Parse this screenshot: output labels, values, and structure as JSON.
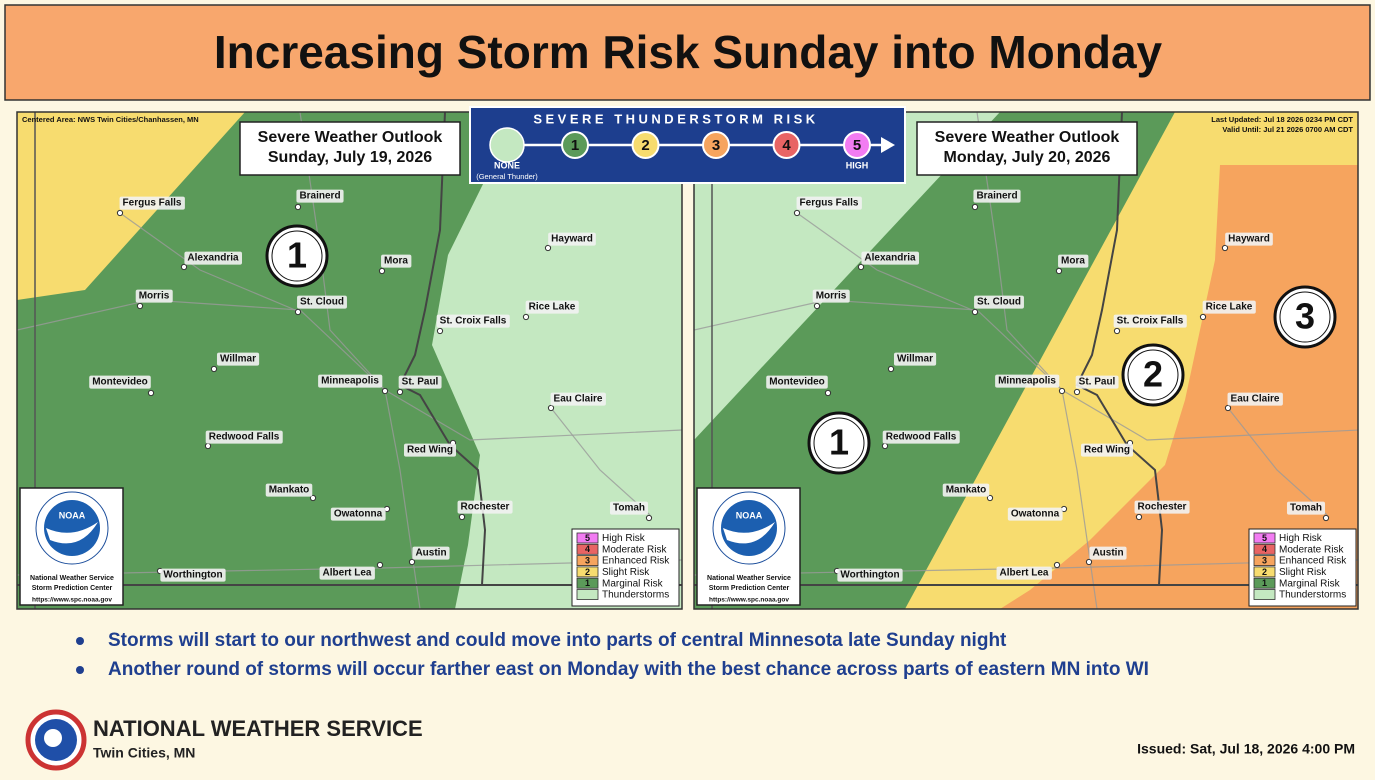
{
  "header": {
    "title": "Increasing Storm Risk Sunday into Monday"
  },
  "risk_scale": {
    "title": "SEVERE THUNDERSTORM RISK",
    "none_label": "NONE",
    "none_note": "(General Thunder)",
    "levels": [
      1,
      2,
      3,
      4,
      5
    ],
    "high_label": "HIGH"
  },
  "maps": [
    {
      "corner_lines": [
        "Centered Area: NWS Twin Cities/Chanhassen, MN"
      ],
      "heading": "Severe Weather Outlook",
      "date": "Sunday, July 19, 2026",
      "risk_circles": [
        1
      ],
      "cities": [
        "Fergus Falls",
        "Brainerd",
        "Alexandria",
        "Mora",
        "Morris",
        "St. Cloud",
        "Willmar",
        "Montevideo",
        "Minneapolis",
        "St. Paul",
        "Redwood Falls",
        "Mankato",
        "Owatonna",
        "Albert Lea",
        "Worthington",
        "Austin",
        "Rochester",
        "Red Wing",
        "Eau Claire",
        "Hayward",
        "Rice Lake",
        "St. Croix Falls",
        "Tomah"
      ],
      "noaa": {
        "logo": "NOAA",
        "lines": [
          "National Weather Service",
          "Storm Prediction Center",
          "https://www.spc.noaa.gov"
        ]
      },
      "key": [
        {
          "num": 5,
          "label": "High Risk"
        },
        {
          "num": 4,
          "label": "Moderate Risk"
        },
        {
          "num": 3,
          "label": "Enhanced Risk"
        },
        {
          "num": 2,
          "label": "Slight Risk"
        },
        {
          "num": 1,
          "label": "Marginal Risk"
        },
        {
          "label": "Thunderstorms"
        }
      ]
    },
    {
      "corner_lines": [
        "Last Updated: Jul 18 2026 0234 PM CDT",
        "Valid Until: Jul 21 2026 0700 AM CDT"
      ],
      "heading": "Severe Weather Outlook",
      "date": "Monday, July 20, 2026",
      "risk_circles": [
        1,
        2,
        3
      ],
      "cities": [
        "Fergus Falls",
        "Brainerd",
        "Alexandria",
        "Mora",
        "Morris",
        "St. Cloud",
        "Willmar",
        "Montevideo",
        "Minneapolis",
        "St. Paul",
        "Redwood Falls",
        "Mankato",
        "Owatonna",
        "Albert Lea",
        "Worthington",
        "Austin",
        "Rochester",
        "Red Wing",
        "Eau Claire",
        "Hayward",
        "Rice Lake",
        "St. Croix Falls",
        "Tomah"
      ],
      "noaa": {
        "logo": "NOAA",
        "lines": [
          "National Weather Service",
          "Storm Prediction Center",
          "https://www.spc.noaa.gov"
        ]
      },
      "key": [
        {
          "num": 5,
          "label": "High Risk"
        },
        {
          "num": 4,
          "label": "Moderate Risk"
        },
        {
          "num": 3,
          "label": "Enhanced Risk"
        },
        {
          "num": 2,
          "label": "Slight Risk"
        },
        {
          "num": 1,
          "label": "Marginal Risk"
        },
        {
          "label": "Thunderstorms"
        }
      ]
    }
  ],
  "bullets": [
    "Storms will start to our northwest and could move into parts of central Minnesota late Sunday night",
    "Another round of storms will occur farther east on Monday with the best chance across parts of eastern MN into WI"
  ],
  "footer": {
    "org": "NATIONAL WEATHER SERVICE",
    "office": "Twin Cities, MN",
    "issued": "Issued: Sat, Jul 18, 2026 4:00 PM"
  }
}
